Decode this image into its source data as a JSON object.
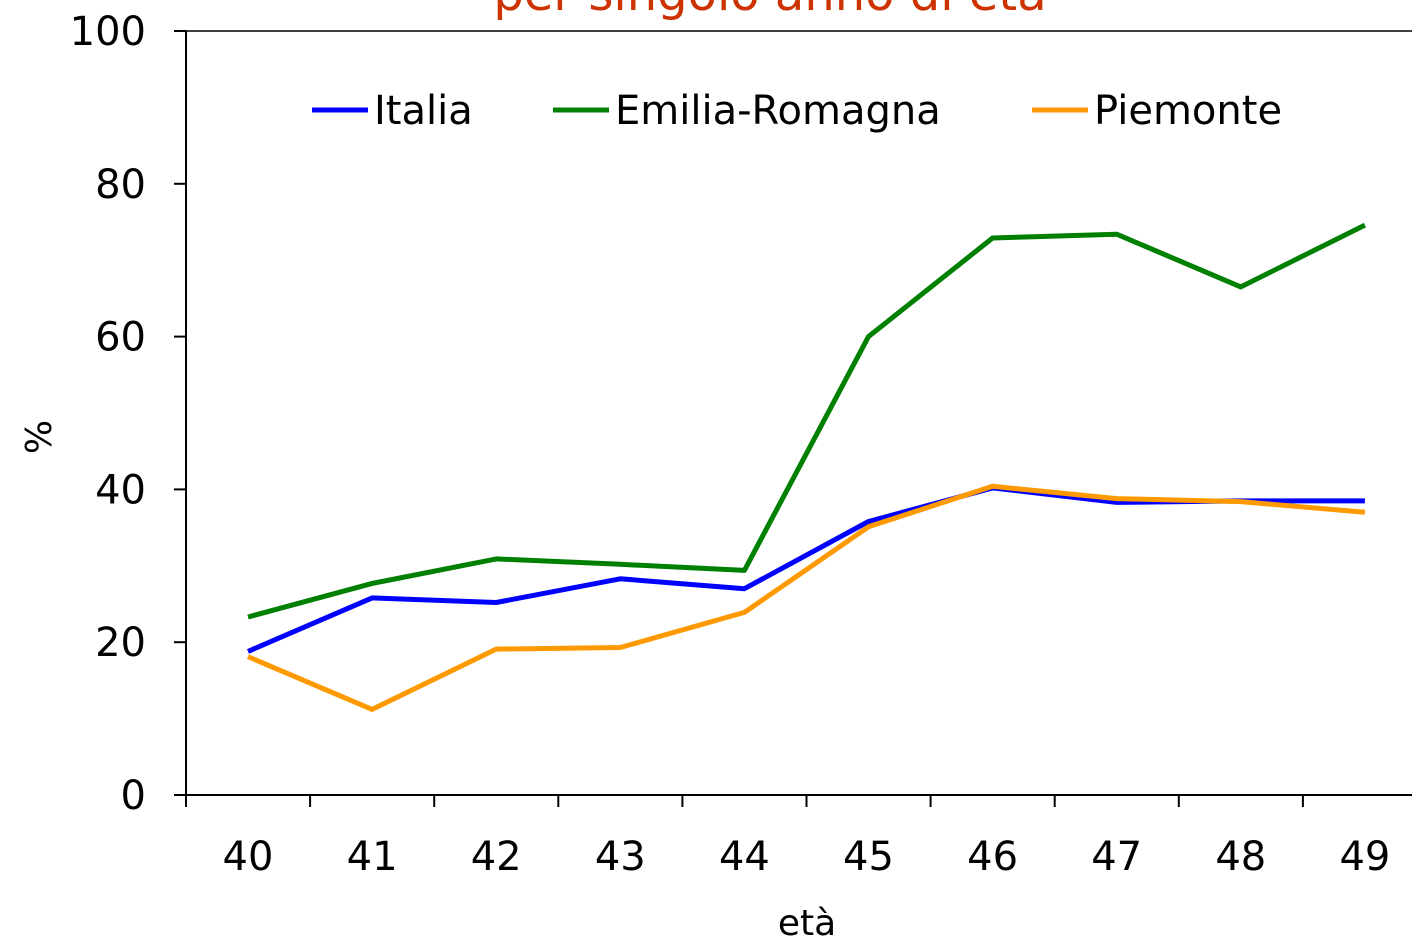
{
  "chart_data": {
    "type": "line",
    "title": "per singolo anno di età",
    "xlabel": "età",
    "ylabel": "%",
    "categories": [
      "40",
      "41",
      "42",
      "43",
      "44",
      "45",
      "46",
      "47",
      "48",
      "49"
    ],
    "ylim": [
      0,
      100
    ],
    "yticks": [
      0,
      20,
      40,
      60,
      80,
      100
    ],
    "grid": false,
    "legend_position": "top",
    "series": [
      {
        "name": "Italia",
        "color": "#0000ff",
        "values": [
          18.8,
          25.8,
          25.2,
          28.3,
          27.0,
          35.8,
          40.2,
          38.3,
          38.5,
          38.5
        ]
      },
      {
        "name": "Emilia-Romagna",
        "color": "#008000",
        "values": [
          23.3,
          27.7,
          30.9,
          30.2,
          29.4,
          60.0,
          72.9,
          73.4,
          66.5,
          74.6
        ]
      },
      {
        "name": "Piemonte",
        "color": "#ff9900",
        "values": [
          18.1,
          11.2,
          19.1,
          19.3,
          23.9,
          35.1,
          40.4,
          38.8,
          38.4,
          37.0
        ]
      }
    ],
    "title_color": "#cc3300"
  }
}
